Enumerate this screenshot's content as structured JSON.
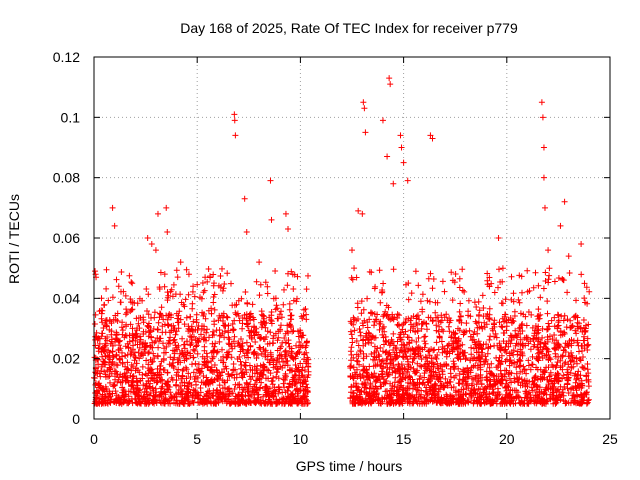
{
  "chart_data": {
    "type": "scatter",
    "title": "Day 168 of 2025, Rate Of TEC Index for receiver p779",
    "xlabel": "GPS time / hours",
    "ylabel": "ROTI / TECUs",
    "xlim": [
      0,
      25
    ],
    "ylim": [
      0,
      0.12
    ],
    "xticks": [
      0,
      5,
      10,
      15,
      20,
      25
    ],
    "yticks": [
      0,
      0.02,
      0.04,
      0.06,
      0.08,
      0.1,
      0.12
    ],
    "xtick_labels": [
      "0",
      "5",
      "10",
      "15",
      "20",
      "25"
    ],
    "ytick_labels": [
      "0",
      "0.02",
      "0.04",
      "0.06",
      "0.08",
      "0.1",
      "0.12"
    ],
    "grid": true,
    "marker": "+",
    "color": "#ff0000",
    "data_gap_hours": [
      10.4,
      12.4
    ],
    "time_range_hours": [
      0,
      24
    ],
    "baseline_roti_range": [
      0.005,
      0.035
    ],
    "series": [
      {
        "name": "p779 ROTI",
        "points": [
          [
            0.05,
            0.049
          ],
          [
            0.1,
            0.047
          ],
          [
            0.35,
            0.036
          ],
          [
            0.9,
            0.07
          ],
          [
            1.0,
            0.064
          ],
          [
            1.2,
            0.044
          ],
          [
            2.6,
            0.06
          ],
          [
            2.8,
            0.058
          ],
          [
            3.0,
            0.056
          ],
          [
            3.1,
            0.068
          ],
          [
            3.5,
            0.07
          ],
          [
            3.55,
            0.062
          ],
          [
            4.2,
            0.052
          ],
          [
            4.6,
            0.048
          ],
          [
            4.8,
            0.044
          ],
          [
            5.3,
            0.042
          ],
          [
            6.8,
            0.101
          ],
          [
            6.82,
            0.099
          ],
          [
            6.85,
            0.094
          ],
          [
            7.3,
            0.073
          ],
          [
            7.4,
            0.062
          ],
          [
            8.0,
            0.052
          ],
          [
            8.55,
            0.079
          ],
          [
            8.6,
            0.066
          ],
          [
            9.3,
            0.068
          ],
          [
            9.4,
            0.063
          ],
          [
            12.5,
            0.056
          ],
          [
            12.6,
            0.05
          ],
          [
            12.8,
            0.069
          ],
          [
            13.0,
            0.068
          ],
          [
            13.05,
            0.105
          ],
          [
            13.1,
            0.103
          ],
          [
            13.15,
            0.095
          ],
          [
            14.0,
            0.099
          ],
          [
            14.2,
            0.087
          ],
          [
            14.3,
            0.113
          ],
          [
            14.35,
            0.111
          ],
          [
            14.5,
            0.078
          ],
          [
            14.85,
            0.094
          ],
          [
            14.9,
            0.09
          ],
          [
            15.0,
            0.085
          ],
          [
            15.2,
            0.079
          ],
          [
            16.3,
            0.094
          ],
          [
            16.4,
            0.093
          ],
          [
            19.6,
            0.06
          ],
          [
            21.7,
            0.105
          ],
          [
            21.75,
            0.1
          ],
          [
            21.8,
            0.09
          ],
          [
            21.8,
            0.08
          ],
          [
            21.85,
            0.07
          ],
          [
            22.0,
            0.056
          ],
          [
            22.6,
            0.064
          ],
          [
            22.8,
            0.072
          ],
          [
            23.0,
            0.054
          ],
          [
            23.6,
            0.058
          ]
        ]
      }
    ]
  }
}
